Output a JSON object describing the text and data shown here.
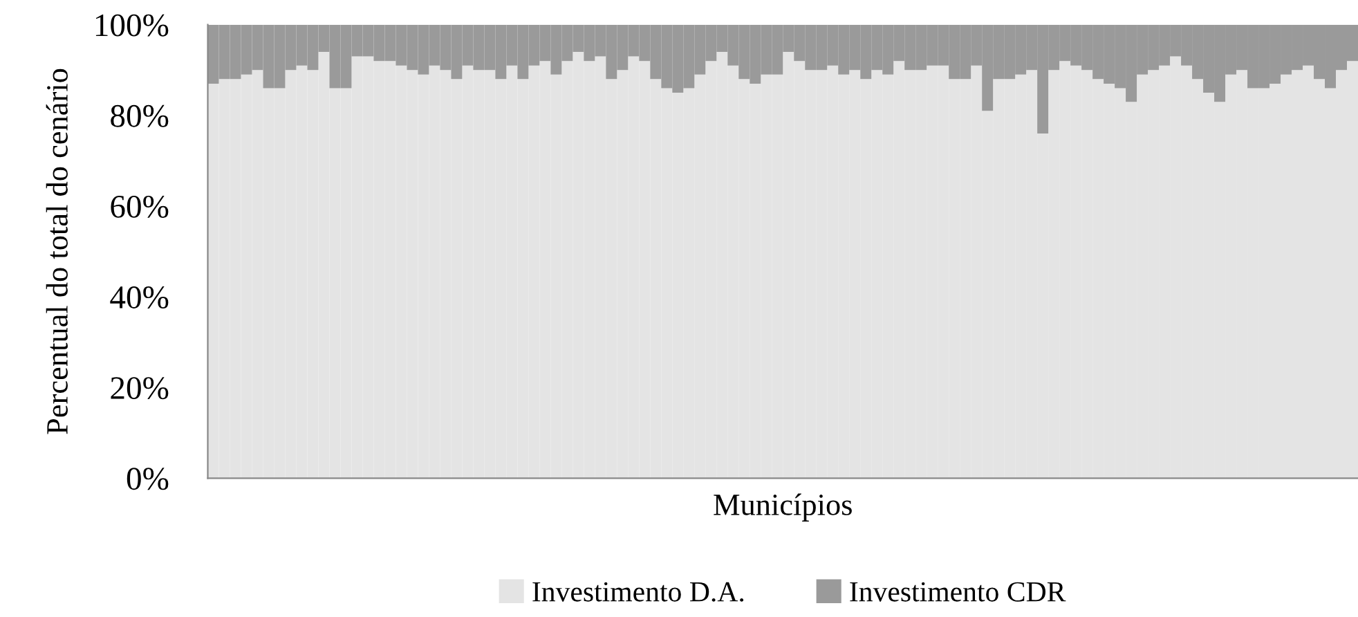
{
  "chart_data": {
    "type": "bar",
    "stacked": true,
    "xlabel": "Municípios",
    "ylabel": "Percentual do total do cenário",
    "categories": [
      null,
      null,
      null,
      null,
      null,
      null,
      null,
      null,
      null,
      null,
      null,
      null,
      null,
      null,
      null,
      null,
      null,
      null,
      null,
      null,
      null,
      null,
      null,
      null,
      null,
      null,
      null,
      null,
      null,
      null,
      null,
      null,
      null,
      null,
      null,
      null,
      null,
      null,
      null,
      null,
      null,
      null,
      null,
      null,
      null,
      null,
      null,
      null,
      null,
      null,
      null,
      null,
      null,
      null,
      null,
      null,
      null,
      null,
      null,
      null,
      null,
      null,
      null,
      null,
      null,
      null,
      null,
      null,
      null,
      null,
      null,
      null,
      null,
      null,
      null,
      null,
      null,
      null,
      null,
      null,
      null,
      null,
      null,
      null,
      null,
      null,
      null,
      null,
      null,
      null,
      null,
      null,
      null,
      null,
      null,
      null,
      null,
      null,
      null,
      null,
      null,
      null,
      null,
      null
    ],
    "series": [
      {
        "name": "Investimento D.A.",
        "color": "#e4e4e4",
        "values": [
          87,
          88,
          88,
          89,
          90,
          86,
          86,
          90,
          91,
          90,
          94,
          86,
          86,
          93,
          93,
          92,
          92,
          91,
          90,
          89,
          91,
          90,
          88,
          91,
          90,
          90,
          88,
          91,
          88,
          91,
          92,
          89,
          92,
          94,
          92,
          93,
          88,
          90,
          93,
          92,
          88,
          86,
          85,
          86,
          89,
          92,
          94,
          91,
          88,
          87,
          89,
          89,
          94,
          92,
          90,
          90,
          91,
          89,
          90,
          88,
          90,
          89,
          92,
          90,
          90,
          91,
          91,
          88,
          88,
          91,
          81,
          88,
          88,
          89,
          90,
          76,
          90,
          92,
          91,
          90,
          88,
          87,
          86,
          83,
          89,
          90,
          91,
          93,
          91,
          88,
          85,
          83,
          89,
          90,
          86,
          86,
          87,
          89,
          90,
          91,
          88,
          86,
          90,
          92
        ]
      },
      {
        "name": "Investimento CDR",
        "color": "#9a9a9a",
        "values": [
          13,
          12,
          12,
          11,
          10,
          14,
          14,
          10,
          9,
          10,
          6,
          14,
          14,
          7,
          7,
          8,
          8,
          9,
          10,
          11,
          9,
          10,
          12,
          9,
          10,
          10,
          12,
          9,
          12,
          9,
          8,
          11,
          8,
          6,
          8,
          7,
          12,
          10,
          7,
          8,
          12,
          14,
          15,
          14,
          11,
          8,
          6,
          9,
          12,
          13,
          11,
          11,
          6,
          8,
          10,
          10,
          9,
          11,
          10,
          12,
          10,
          11,
          8,
          10,
          10,
          9,
          9,
          12,
          12,
          9,
          19,
          12,
          12,
          11,
          10,
          24,
          10,
          8,
          9,
          10,
          12,
          13,
          14,
          17,
          11,
          10,
          9,
          7,
          9,
          12,
          15,
          17,
          11,
          10,
          14,
          14,
          13,
          11,
          10,
          9,
          12,
          14,
          10,
          8
        ]
      }
    ],
    "ylim": [
      0,
      100
    ],
    "yticks": [
      {
        "value": 0,
        "label": "0%"
      },
      {
        "value": 20,
        "label": "20%"
      },
      {
        "value": 40,
        "label": "40%"
      },
      {
        "value": 60,
        "label": "60%"
      },
      {
        "value": 80,
        "label": "80%"
      },
      {
        "value": 100,
        "label": "100%"
      }
    ],
    "grid": false,
    "legend": "bottom"
  }
}
